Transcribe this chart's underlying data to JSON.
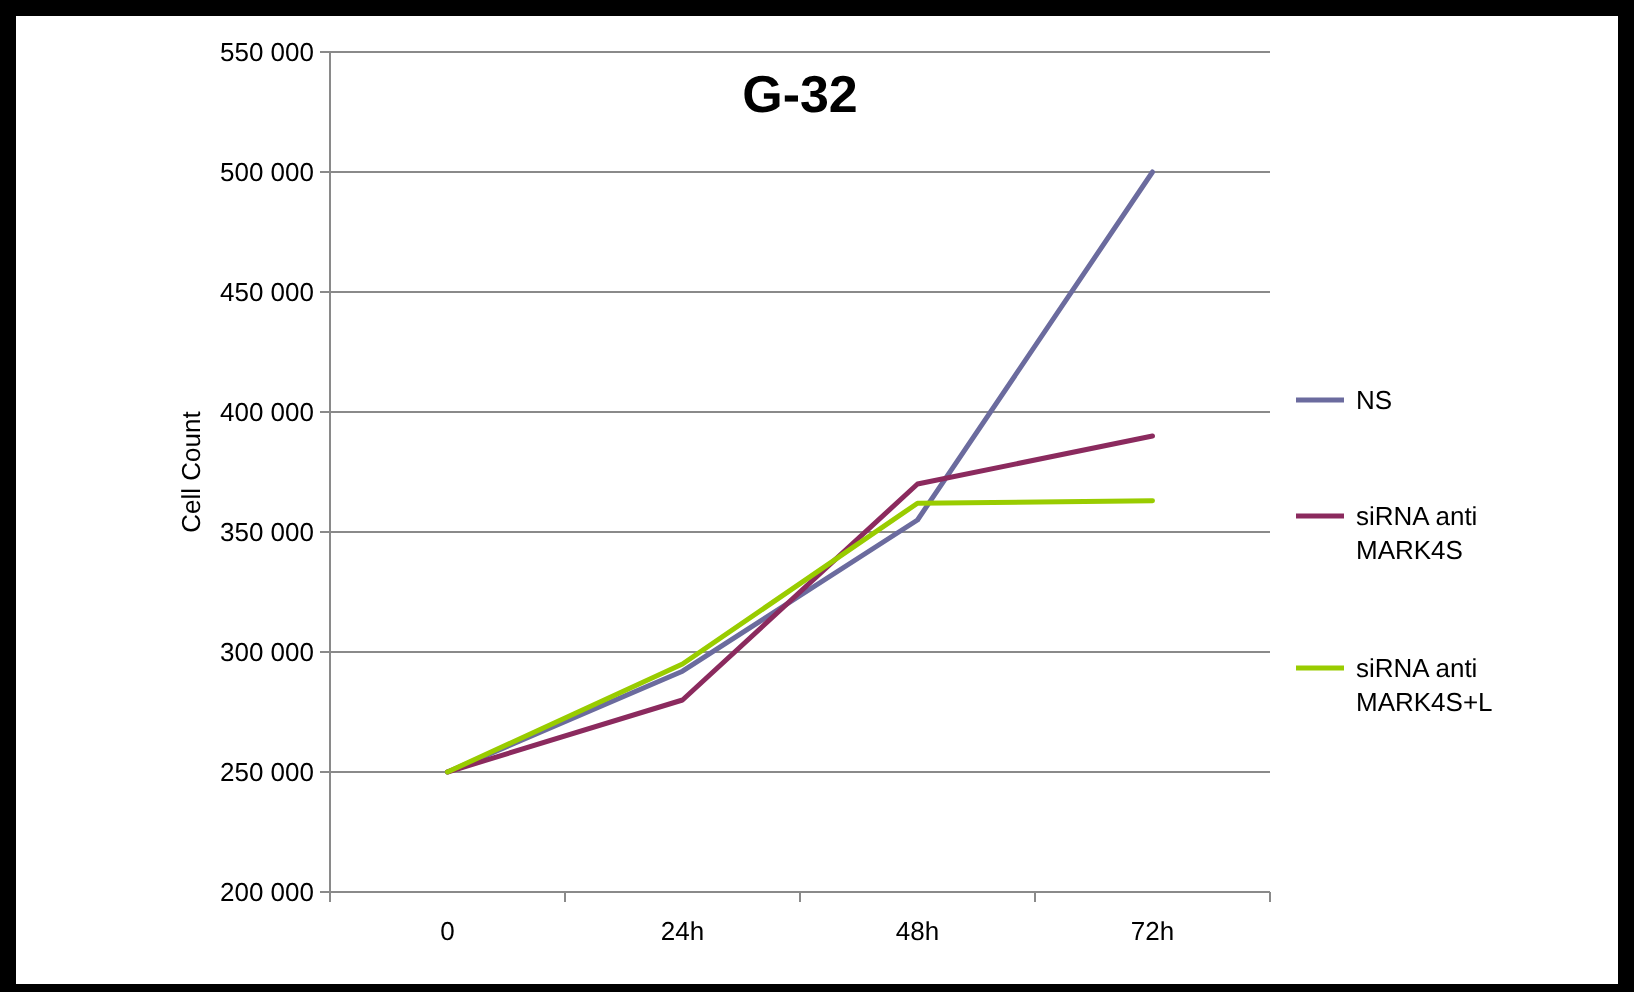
{
  "chart_data": {
    "type": "line",
    "title": "G-32",
    "ylabel": "Cell Count",
    "categories": [
      "0",
      "24h",
      "48h",
      "72h"
    ],
    "series": [
      {
        "name": "NS",
        "color": "#6b6b9e",
        "values": [
          250000,
          292000,
          355000,
          500000
        ]
      },
      {
        "name": "siRNA anti MARK4S",
        "color": "#8b2a5e",
        "values": [
          250000,
          280000,
          370000,
          390000
        ]
      },
      {
        "name": "siRNA anti MARK4S+L",
        "color": "#99cc00",
        "values": [
          250000,
          295000,
          362000,
          363000
        ]
      }
    ],
    "ylim": [
      200000,
      550000
    ],
    "yticks": [
      {
        "value": 200000,
        "label": "200 000"
      },
      {
        "value": 250000,
        "label": "250 000"
      },
      {
        "value": 300000,
        "label": "300 000"
      },
      {
        "value": 350000,
        "label": "350 000"
      },
      {
        "value": 400000,
        "label": "400 000"
      },
      {
        "value": 450000,
        "label": "450 000"
      },
      {
        "value": 500000,
        "label": "500 000"
      },
      {
        "value": 550000,
        "label": "550 000"
      }
    ],
    "grid": "y",
    "legend": "right",
    "marker": "none",
    "line_style": "solid"
  }
}
